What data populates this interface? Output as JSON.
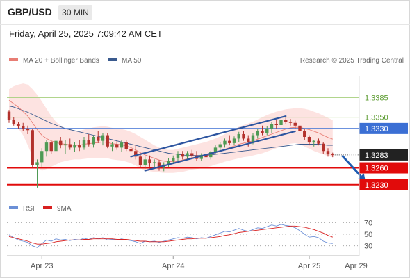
{
  "header": {
    "pair": "GBP/USD",
    "timeframe": "30 MIN",
    "datetime": "Friday, April 25, 2025 7:09:42 AM CET"
  },
  "legend": {
    "ma": "MA 20 + Bollinger Bands",
    "ma50": "MA 50",
    "copyright": "Research © 2025 Trading Central",
    "rsi": "RSI",
    "rsi_ma": "9MA"
  },
  "colors": {
    "bull": "#4f9a55",
    "bear": "#b3312c",
    "ma20": "#e87d74",
    "ma50": "#3a5a8e",
    "band_fill": "#fde3e1",
    "resistance_line": "#a6cf7c",
    "pivot": "#3b6fd4",
    "support": "#e10b0b",
    "channel": "#2d55a0",
    "forecast_arrow": "#1f5bb0",
    "rsi": "#6b8fd6",
    "rsi_ma": "#d82020"
  },
  "chart_data": {
    "type": "candlestick",
    "instrument": "GBP/USD",
    "timeframe": "30 MIN",
    "ylim": [
      1.321,
      1.342
    ],
    "x_ticks": [
      "Apr 23",
      "Apr 24",
      "Apr 25",
      "Apr 29"
    ],
    "x_tick_index": [
      7,
      35,
      64,
      74
    ],
    "candles": [
      [
        1.336,
        1.3363,
        1.334,
        1.3345
      ],
      [
        1.3345,
        1.335,
        1.3335,
        1.3338
      ],
      [
        1.3338,
        1.3342,
        1.333,
        1.3334
      ],
      [
        1.3334,
        1.334,
        1.3325,
        1.333
      ],
      [
        1.333,
        1.3335,
        1.332,
        1.3327
      ],
      [
        1.3327,
        1.333,
        1.326,
        1.3265
      ],
      [
        1.3265,
        1.3275,
        1.3225,
        1.327
      ],
      [
        1.327,
        1.3295,
        1.3262,
        1.329
      ],
      [
        1.329,
        1.331,
        1.328,
        1.3305
      ],
      [
        1.3305,
        1.3308,
        1.3285,
        1.329
      ],
      [
        1.329,
        1.3312,
        1.3288,
        1.3308
      ],
      [
        1.3308,
        1.3315,
        1.3295,
        1.33
      ],
      [
        1.33,
        1.331,
        1.3285,
        1.3302
      ],
      [
        1.3302,
        1.3312,
        1.3292,
        1.3296
      ],
      [
        1.3296,
        1.3306,
        1.3288,
        1.33
      ],
      [
        1.33,
        1.331,
        1.329,
        1.3296
      ],
      [
        1.3296,
        1.3315,
        1.3292,
        1.331
      ],
      [
        1.331,
        1.332,
        1.3298,
        1.3302
      ],
      [
        1.3302,
        1.3318,
        1.3296,
        1.3315
      ],
      [
        1.3315,
        1.3325,
        1.3304,
        1.3308
      ],
      [
        1.3308,
        1.3322,
        1.33,
        1.3318
      ],
      [
        1.3318,
        1.3322,
        1.3295,
        1.3298
      ],
      [
        1.3298,
        1.3306,
        1.329,
        1.3302
      ],
      [
        1.3302,
        1.3308,
        1.3292,
        1.3296
      ],
      [
        1.3296,
        1.331,
        1.3288,
        1.3305
      ],
      [
        1.3305,
        1.331,
        1.329,
        1.3294
      ],
      [
        1.3294,
        1.33,
        1.3285,
        1.329
      ],
      [
        1.329,
        1.33,
        1.3275,
        1.328
      ],
      [
        1.328,
        1.3285,
        1.326,
        1.3265
      ],
      [
        1.3265,
        1.328,
        1.3258,
        1.3275
      ],
      [
        1.3275,
        1.3282,
        1.3262,
        1.3268
      ],
      [
        1.3268,
        1.3275,
        1.3258,
        1.327
      ],
      [
        1.327,
        1.3274,
        1.3255,
        1.326
      ],
      [
        1.326,
        1.327,
        1.3254,
        1.3266
      ],
      [
        1.3266,
        1.3278,
        1.3262,
        1.3272
      ],
      [
        1.3272,
        1.3282,
        1.3268,
        1.3278
      ],
      [
        1.3278,
        1.329,
        1.3272,
        1.3285
      ],
      [
        1.3285,
        1.329,
        1.3275,
        1.328
      ],
      [
        1.328,
        1.329,
        1.3275,
        1.3286
      ],
      [
        1.3286,
        1.3292,
        1.3276,
        1.3282
      ],
      [
        1.3282,
        1.329,
        1.3272,
        1.3276
      ],
      [
        1.3276,
        1.3286,
        1.3272,
        1.3283
      ],
      [
        1.3283,
        1.329,
        1.3274,
        1.3279
      ],
      [
        1.3279,
        1.329,
        1.3275,
        1.3288
      ],
      [
        1.3288,
        1.33,
        1.3284,
        1.3296
      ],
      [
        1.3296,
        1.3306,
        1.329,
        1.3302
      ],
      [
        1.3302,
        1.3312,
        1.3296,
        1.3308
      ],
      [
        1.3308,
        1.3318,
        1.33,
        1.3304
      ],
      [
        1.3304,
        1.3316,
        1.33,
        1.3312
      ],
      [
        1.3312,
        1.3324,
        1.3306,
        1.332
      ],
      [
        1.332,
        1.3326,
        1.3308,
        1.3312
      ],
      [
        1.3312,
        1.3318,
        1.3298,
        1.3306
      ],
      [
        1.3306,
        1.3322,
        1.3302,
        1.3318
      ],
      [
        1.3318,
        1.333,
        1.3312,
        1.3325
      ],
      [
        1.3325,
        1.3335,
        1.3318,
        1.3322
      ],
      [
        1.3322,
        1.3334,
        1.3318,
        1.333
      ],
      [
        1.333,
        1.3342,
        1.3322,
        1.3338
      ],
      [
        1.3338,
        1.3346,
        1.333,
        1.3336
      ],
      [
        1.3336,
        1.3348,
        1.3332,
        1.3345
      ],
      [
        1.3345,
        1.3352,
        1.3338,
        1.3342
      ],
      [
        1.3342,
        1.3347,
        1.3335,
        1.334
      ],
      [
        1.334,
        1.3344,
        1.333,
        1.3335
      ],
      [
        1.3335,
        1.3338,
        1.3322,
        1.3326
      ],
      [
        1.3326,
        1.333,
        1.331,
        1.3315
      ],
      [
        1.3315,
        1.3318,
        1.33,
        1.3305
      ],
      [
        1.3305,
        1.331,
        1.3298,
        1.3308
      ],
      [
        1.3308,
        1.3312,
        1.33,
        1.3303
      ],
      [
        1.3303,
        1.3306,
        1.3285,
        1.329
      ],
      [
        1.329,
        1.3295,
        1.328,
        1.3284
      ],
      [
        1.3284,
        1.3287,
        1.3279,
        1.3283
      ]
    ],
    "ma20": [
      1.338,
      1.3374,
      1.3368,
      1.336,
      1.3352,
      1.334,
      1.3328,
      1.3318,
      1.3312,
      1.3308,
      1.3305,
      1.3303,
      1.3302,
      1.3301,
      1.33,
      1.33,
      1.3302,
      1.3303,
      1.3304,
      1.3305,
      1.3306,
      1.3305,
      1.3303,
      1.3302,
      1.3301,
      1.3299,
      1.3296,
      1.3292,
      1.3287,
      1.3283,
      1.328,
      1.3277,
      1.3274,
      1.3272,
      1.3271,
      1.3271,
      1.3272,
      1.3274,
      1.3276,
      1.3278,
      1.3279,
      1.328,
      1.3282,
      1.3284,
      1.3287,
      1.329,
      1.3293,
      1.3296,
      1.3299,
      1.3302,
      1.3304,
      1.3306,
      1.3308,
      1.3311,
      1.3314,
      1.3317,
      1.332,
      1.3323,
      1.3326,
      1.3329,
      1.3331,
      1.3332,
      1.3332,
      1.333,
      1.3328,
      1.3325,
      1.3322,
      1.3318,
      1.3314,
      1.3311
    ],
    "bb_upper": [
      1.34,
      1.3405,
      1.3408,
      1.341,
      1.3408,
      1.34,
      1.339,
      1.3378,
      1.3365,
      1.3352,
      1.3342,
      1.3335,
      1.333,
      1.3328,
      1.3326,
      1.3326,
      1.3328,
      1.333,
      1.3332,
      1.3333,
      1.3334,
      1.3333,
      1.3331,
      1.333,
      1.3329,
      1.3327,
      1.3324,
      1.332,
      1.3315,
      1.331,
      1.3305,
      1.33,
      1.3296,
      1.3293,
      1.3292,
      1.3292,
      1.3294,
      1.3296,
      1.3298,
      1.33,
      1.3302,
      1.3304,
      1.3306,
      1.3309,
      1.3312,
      1.3316,
      1.332,
      1.3324,
      1.3328,
      1.3333,
      1.3336,
      1.3339,
      1.3342,
      1.3346,
      1.335,
      1.3354,
      1.3357,
      1.336,
      1.3362,
      1.3364,
      1.3365,
      1.3366,
      1.3366,
      1.3365,
      1.3363,
      1.336,
      1.3357,
      1.3353,
      1.3349,
      1.3345
    ],
    "bb_lower": [
      1.335,
      1.334,
      1.333,
      1.3318,
      1.33,
      1.328,
      1.3262,
      1.3255,
      1.3258,
      1.3262,
      1.3266,
      1.327,
      1.3272,
      1.3274,
      1.3275,
      1.3275,
      1.3276,
      1.3277,
      1.3277,
      1.3278,
      1.3278,
      1.3277,
      1.3275,
      1.3274,
      1.3273,
      1.3271,
      1.3268,
      1.3264,
      1.3259,
      1.3256,
      1.3254,
      1.3253,
      1.3252,
      1.3251,
      1.3251,
      1.3251,
      1.3252,
      1.3253,
      1.3255,
      1.3257,
      1.3258,
      1.3259,
      1.3261,
      1.3263,
      1.3266,
      1.3268,
      1.3271,
      1.3273,
      1.3275,
      1.3277,
      1.3279,
      1.328,
      1.3282,
      1.3284,
      1.3286,
      1.3289,
      1.3292,
      1.3295,
      1.3298,
      1.3301,
      1.3303,
      1.3304,
      1.3302,
      1.3298,
      1.3294,
      1.329,
      1.3287,
      1.3284,
      1.3281,
      1.3279
    ],
    "ma50": [
      1.337,
      1.3368,
      1.3365,
      1.3362,
      1.3359,
      1.3355,
      1.3351,
      1.3347,
      1.3343,
      1.3339,
      1.3336,
      1.3333,
      1.333,
      1.3328,
      1.3326,
      1.3324,
      1.3322,
      1.332,
      1.3318,
      1.3316,
      1.3314,
      1.3312,
      1.331,
      1.3308,
      1.3306,
      1.3304,
      1.3302,
      1.33,
      1.3298,
      1.3296,
      1.3294,
      1.3292,
      1.329,
      1.3288,
      1.3286,
      1.3285,
      1.3284,
      1.3283,
      1.3282,
      1.3282,
      1.3282,
      1.3282,
      1.3282,
      1.3283,
      1.3284,
      1.3285,
      1.3286,
      1.3287,
      1.3288,
      1.3289,
      1.329,
      1.3291,
      1.3292,
      1.3293,
      1.3294,
      1.3295,
      1.3296,
      1.3297,
      1.3298,
      1.3299,
      1.33,
      1.3301,
      1.3302,
      1.3302,
      1.3302,
      1.3302,
      1.3302,
      1.3301,
      1.33,
      1.33
    ],
    "levels": [
      {
        "value": 1.3385,
        "label": "1.3385",
        "kind": "resistance"
      },
      {
        "value": 1.335,
        "label": "1.3350",
        "kind": "resistance"
      },
      {
        "value": 1.333,
        "label": "1.3330",
        "kind": "pivot"
      },
      {
        "value": 1.3283,
        "label": "1.3283",
        "kind": "last"
      },
      {
        "value": 1.326,
        "label": "1.3260",
        "kind": "support"
      },
      {
        "value": 1.323,
        "label": "1.3230",
        "kind": "support"
      }
    ],
    "channel": [
      {
        "from": [
          26,
          1.328
        ],
        "to": [
          59,
          1.3352
        ]
      },
      {
        "from": [
          29,
          1.3255
        ],
        "to": [
          61,
          1.3325
        ]
      }
    ],
    "forecast_arrow": {
      "from": [
        71,
        1.3282
      ],
      "to": [
        76,
        1.3236
      ]
    },
    "rsi": {
      "ticks": [
        70,
        50,
        30
      ],
      "ylim": [
        20,
        80
      ],
      "values": [
        49,
        44,
        40,
        38,
        36,
        30,
        27,
        34,
        40,
        38,
        42,
        40,
        41,
        39,
        41,
        40,
        43,
        41,
        44,
        42,
        44,
        40,
        41,
        40,
        42,
        40,
        39,
        37,
        34,
        38,
        37,
        38,
        36,
        38,
        40,
        42,
        44,
        43,
        45,
        44,
        42,
        44,
        43,
        46,
        49,
        52,
        55,
        54,
        57,
        60,
        57,
        55,
        58,
        61,
        60,
        63,
        66,
        64,
        67,
        65,
        64,
        61,
        56,
        50,
        45,
        46,
        44,
        38,
        35,
        34
      ],
      "ma9": [
        46,
        44,
        42,
        40,
        38,
        35,
        33,
        33,
        34,
        35,
        37,
        38,
        39,
        40,
        40,
        40,
        41,
        41,
        42,
        42,
        42,
        42,
        42,
        41,
        41,
        41,
        40,
        39,
        38,
        38,
        37,
        37,
        37,
        37,
        38,
        39,
        40,
        41,
        42,
        42,
        43,
        43,
        43,
        44,
        45,
        46,
        48,
        49,
        51,
        53,
        54,
        55,
        56,
        57,
        58,
        59,
        60,
        61,
        62,
        63,
        64,
        64,
        63,
        62,
        60,
        58,
        55,
        52,
        48,
        45
      ]
    }
  }
}
